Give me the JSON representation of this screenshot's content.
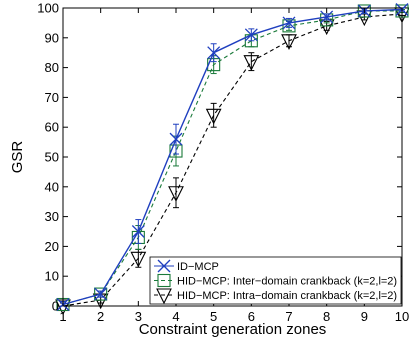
{
  "chart_data": {
    "type": "line",
    "xlabel": "Constraint generation zones",
    "ylabel": "GSR",
    "xlim": [
      1,
      10
    ],
    "ylim": [
      0,
      100
    ],
    "xticks": [
      1,
      2,
      3,
      4,
      5,
      6,
      7,
      8,
      9,
      10
    ],
    "yticks": [
      0,
      10,
      20,
      30,
      40,
      50,
      60,
      70,
      80,
      90,
      100
    ],
    "grid": false,
    "legend_position": "bottom-right",
    "x": [
      1,
      2,
      3,
      4,
      5,
      6,
      7,
      8,
      9,
      10
    ],
    "series": [
      {
        "name": "ID−MCP",
        "marker": "x",
        "line_style": "solid",
        "color": "#1f3fbf",
        "values": [
          0.5,
          4,
          25,
          56,
          85,
          91,
          95,
          97,
          99,
          99.5
        ],
        "errors": [
          1,
          1,
          4,
          5,
          3,
          2,
          1.5,
          1,
          0.8,
          0.5
        ]
      },
      {
        "name": "HID−MCP: Inter−domain crankback (k=2,l=2)",
        "marker": "square",
        "line_style": "dashed",
        "color": "#1a7a3a",
        "values": [
          0.5,
          4,
          23,
          52,
          81,
          89,
          94,
          96,
          99,
          99
        ],
        "errors": [
          1,
          1,
          4,
          5,
          3,
          2,
          1.5,
          1,
          0.8,
          0.5
        ]
      },
      {
        "name": "HID−MCP: Intra−domain crankback (k=2,l=2)",
        "marker": "triangle-down",
        "line_style": "dashed",
        "color": "#000000",
        "values": [
          0,
          2,
          16,
          38,
          64,
          82,
          89,
          94,
          97,
          98
        ],
        "errors": [
          1,
          1,
          3,
          5,
          4,
          3,
          2,
          1.5,
          1,
          0.5
        ]
      }
    ]
  }
}
